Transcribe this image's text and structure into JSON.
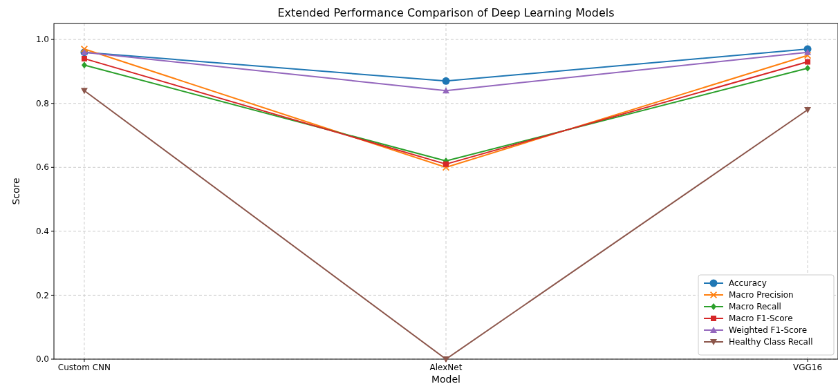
{
  "chart_data": {
    "type": "line",
    "title": "Extended Performance Comparison of Deep Learning Models",
    "xlabel": "Model",
    "ylabel": "Score",
    "categories": [
      "Custom CNN",
      "AlexNet",
      "VGG16"
    ],
    "ylim": [
      0,
      1.05
    ],
    "yticks": [
      {
        "value": 0,
        "label": "0.0"
      },
      0.2,
      0.4,
      0.6,
      0.8,
      {
        "value": 1,
        "label": "1.0"
      }
    ],
    "grid": true,
    "legend": "bottom right",
    "series": [
      {
        "name": "Accuracy",
        "color": "#1f77b4",
        "marker": "circle",
        "values": [
          0.96,
          0.87,
          0.97
        ]
      },
      {
        "name": "Macro Precision",
        "color": "#ff7f0e",
        "marker": "cross",
        "values": [
          0.97,
          0.6,
          0.95
        ]
      },
      {
        "name": "Macro Recall",
        "color": "#2ca02c",
        "marker": "diamond",
        "values": [
          0.92,
          0.62,
          0.91
        ]
      },
      {
        "name": "Macro F1-Score",
        "color": "#d62728",
        "marker": "square",
        "values": [
          0.94,
          0.61,
          0.93
        ]
      },
      {
        "name": "Weighted F1-Score",
        "color": "#9467bd",
        "marker": "triangle",
        "values": [
          0.96,
          0.84,
          0.96
        ]
      },
      {
        "name": "Healthy Class Recall",
        "color": "#8c564b",
        "marker": "triangle-down",
        "values": [
          0.84,
          0,
          0.78
        ]
      }
    ]
  }
}
